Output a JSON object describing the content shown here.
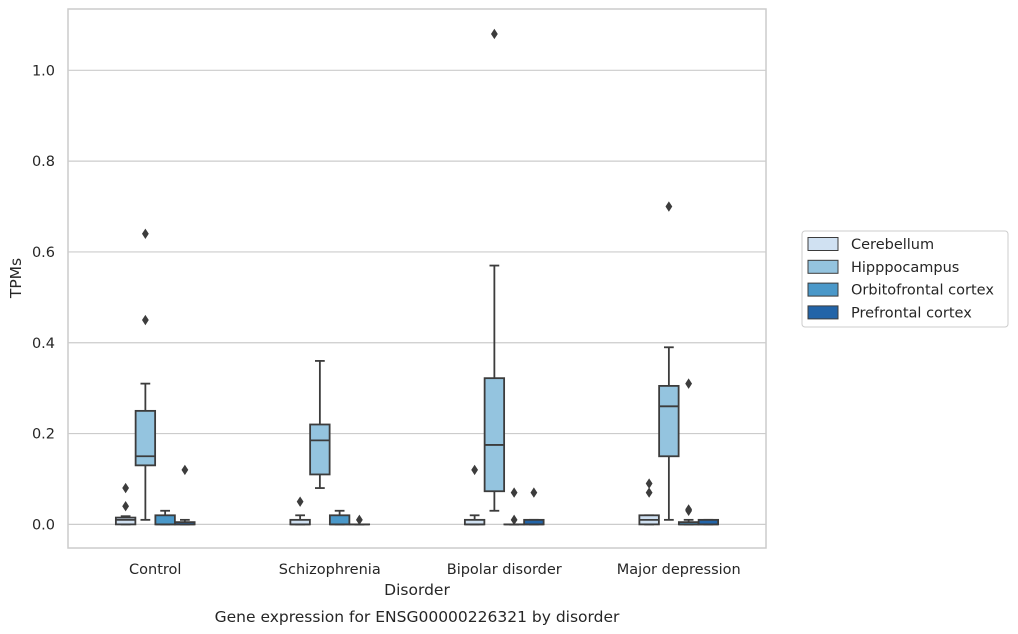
{
  "caption": "Gene expression for ENSG00000226321 by disorder",
  "chart_data": {
    "type": "box",
    "xlabel": "Disorder",
    "ylabel": "TPMs",
    "ylim": [
      -0.052,
      1.135
    ],
    "yticks": [
      0.0,
      0.2,
      0.4,
      0.6,
      0.8,
      1.0
    ],
    "ytick_labels": [
      "0.0",
      "0.2",
      "0.4",
      "0.6",
      "0.8",
      "1.0"
    ],
    "grid": "horizontal",
    "legend_position": "right",
    "categories": [
      "Control",
      "Schizophrenia",
      "Bipolar disorder",
      "Major depression"
    ],
    "series": [
      {
        "name": "Cerebellum",
        "color": "#d0e1f2",
        "boxes": [
          {
            "whisker_low": 0.0,
            "q1": 0.0,
            "median": 0.01,
            "q3": 0.015,
            "whisker_high": 0.018,
            "outliers": [
              0.04,
              0.08
            ]
          },
          {
            "whisker_low": 0.0,
            "q1": 0.0,
            "median": 0.0,
            "q3": 0.01,
            "whisker_high": 0.02,
            "outliers": [
              0.05
            ]
          },
          {
            "whisker_low": 0.0,
            "q1": 0.0,
            "median": 0.0,
            "q3": 0.01,
            "whisker_high": 0.02,
            "outliers": [
              0.12
            ]
          },
          {
            "whisker_low": 0.0,
            "q1": 0.0,
            "median": 0.01,
            "q3": 0.02,
            "whisker_high": 0.02,
            "outliers": [
              0.07,
              0.09
            ]
          }
        ]
      },
      {
        "name": "Hipppocampus",
        "color": "#94c4df",
        "boxes": [
          {
            "whisker_low": 0.01,
            "q1": 0.13,
            "median": 0.15,
            "q3": 0.25,
            "whisker_high": 0.31,
            "outliers": [
              0.45,
              0.64
            ]
          },
          {
            "whisker_low": 0.08,
            "q1": 0.11,
            "median": 0.185,
            "q3": 0.22,
            "whisker_high": 0.36,
            "outliers": []
          },
          {
            "whisker_low": 0.03,
            "q1": 0.073,
            "median": 0.175,
            "q3": 0.322,
            "whisker_high": 0.57,
            "outliers": [
              1.08
            ]
          },
          {
            "whisker_low": 0.01,
            "q1": 0.15,
            "median": 0.26,
            "q3": 0.305,
            "whisker_high": 0.39,
            "outliers": [
              0.7
            ]
          }
        ]
      },
      {
        "name": "Orbitofrontal cortex",
        "color": "#4a98c9",
        "boxes": [
          {
            "whisker_low": 0.0,
            "q1": 0.0,
            "median": 0.0,
            "q3": 0.02,
            "whisker_high": 0.03,
            "outliers": []
          },
          {
            "whisker_low": 0.0,
            "q1": 0.0,
            "median": 0.0,
            "q3": 0.02,
            "whisker_high": 0.03,
            "outliers": []
          },
          {
            "whisker_low": 0.0,
            "q1": 0.0,
            "median": 0.0,
            "q3": 0.0,
            "whisker_high": 0.0,
            "outliers": [
              0.01,
              0.07
            ]
          },
          {
            "whisker_low": 0.0,
            "q1": 0.0,
            "median": 0.0,
            "q3": 0.005,
            "whisker_high": 0.01,
            "outliers": [
              0.03,
              0.033,
              0.31
            ]
          }
        ]
      },
      {
        "name": "Prefrontal cortex",
        "color": "#2264a8",
        "boxes": [
          {
            "whisker_low": 0.0,
            "q1": 0.0,
            "median": 0.0,
            "q3": 0.005,
            "whisker_high": 0.01,
            "outliers": [
              0.12
            ]
          },
          {
            "whisker_low": 0.0,
            "q1": 0.0,
            "median": 0.0,
            "q3": 0.0,
            "whisker_high": 0.0,
            "outliers": [
              0.01
            ]
          },
          {
            "whisker_low": 0.0,
            "q1": 0.0,
            "median": 0.0,
            "q3": 0.01,
            "whisker_high": 0.01,
            "outliers": [
              0.07
            ]
          },
          {
            "whisker_low": 0.0,
            "q1": 0.0,
            "median": 0.0,
            "q3": 0.01,
            "whisker_high": 0.01,
            "outliers": []
          }
        ]
      }
    ]
  }
}
